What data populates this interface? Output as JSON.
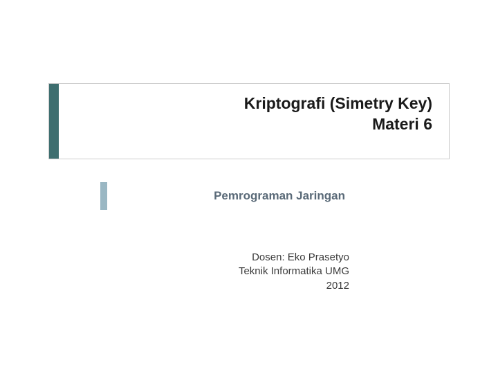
{
  "title": {
    "line1": "Kriptografi (Simetry Key)",
    "line2": "Materi 6",
    "accent_color": "#3e6e6f",
    "border_color": "#cccccc",
    "font_size": 23,
    "font_weight": 700,
    "text_color": "#1a1a1a"
  },
  "subtitle": {
    "text": "Pemrograman Jaringan",
    "accent_color": "#9ab7c3",
    "font_size": 17,
    "font_weight": 700,
    "text_color": "#5a6a78"
  },
  "footer": {
    "line1": "Dosen: Eko Prasetyo",
    "line2": "Teknik Informatika UMG",
    "line3": "2012",
    "font_size": 15,
    "text_color": "#3a3a3a"
  },
  "background_color": "#ffffff"
}
